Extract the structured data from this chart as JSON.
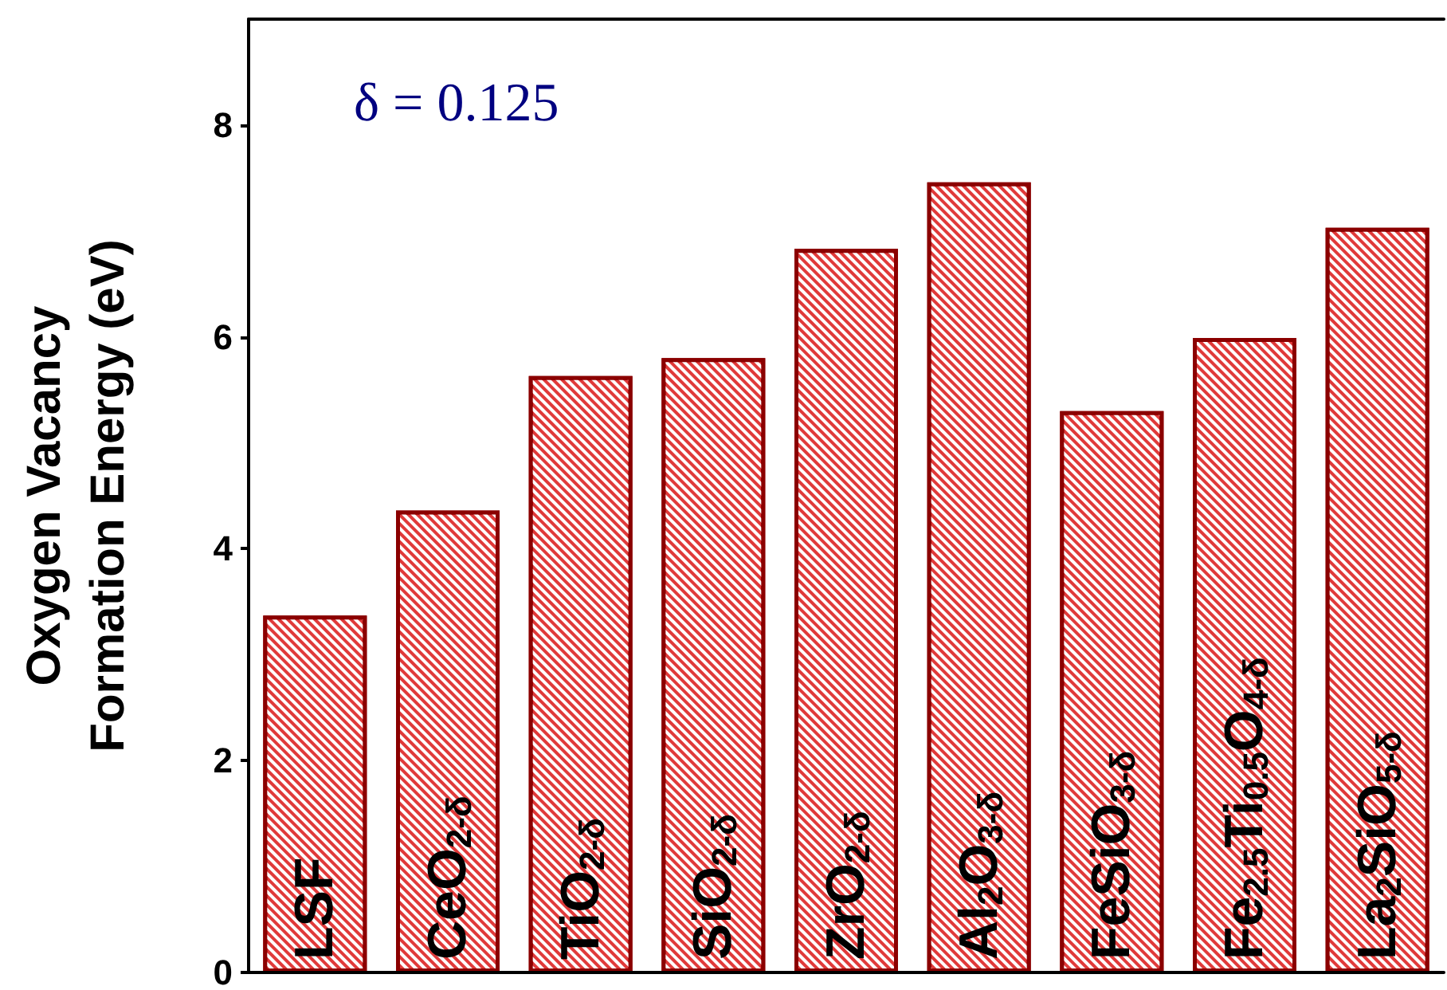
{
  "chart_data": {
    "type": "bar",
    "ylabel": "Oxygen Vacancy\nFormation Energy (eV)",
    "categories": [
      "LSF",
      "CeO$_{2-δ}$",
      "TiO$_{2-δ}$",
      "SiO$_{2-δ}$",
      "ZrO$_{2-δ}$",
      "Al$_{2}$O$_{3-δ}$",
      "FeSiO$_{3-δ}$",
      "Fe$_{2.5}$Ti$_{0.5}$O$_{4-δ}$",
      "La$_{2}$SiO$_{5-δ}$"
    ],
    "values": [
      3.37,
      4.36,
      5.63,
      5.8,
      6.83,
      7.46,
      5.3,
      5.99,
      7.03
    ],
    "color": "#e03a3a",
    "ylim": [
      0,
      9
    ],
    "yticks": [
      0,
      2,
      4,
      6,
      8
    ],
    "grid": false,
    "annotations": [
      "δ = 0.125"
    ]
  }
}
